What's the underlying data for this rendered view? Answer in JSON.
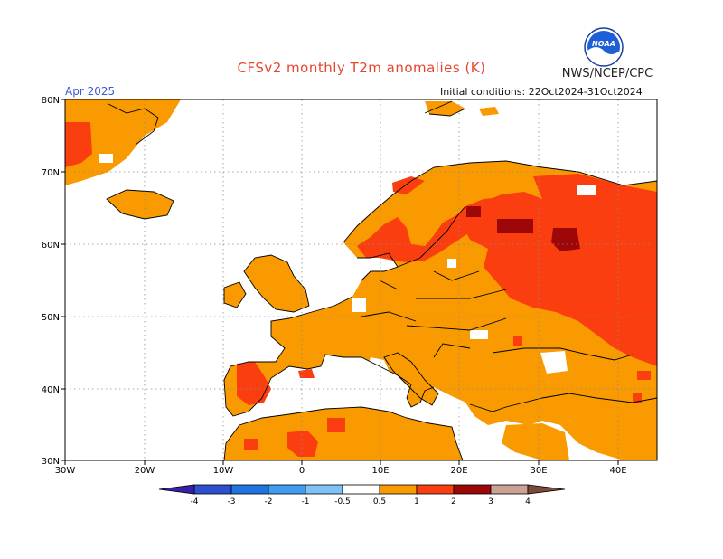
{
  "title": "CFSv2 monthly T2m anomalies (K)",
  "agency": "NWS/NCEP/CPC",
  "logo_text": "NOAA",
  "valid_month": "Apr 2025",
  "initial_conditions": "Initial conditions: 22Oct2024-31Oct2024",
  "map": {
    "lat_labels": [
      "80N",
      "70N",
      "60N",
      "50N",
      "40N",
      "30N"
    ],
    "lon_labels": [
      "30W",
      "20W",
      "10W",
      "0",
      "10E",
      "20E",
      "30E",
      "40E"
    ]
  },
  "colorbar": {
    "labels": [
      "-4",
      "-3",
      "-2",
      "-1",
      "-0.5",
      "0.5",
      "1",
      "2",
      "3",
      "4"
    ],
    "colors": [
      "#3a1fa8",
      "#2d4fd0",
      "#1e74e0",
      "#3f9cf0",
      "#7ec2f7",
      "#ffffff",
      "#f89a00",
      "#fb3e0f",
      "#9e0707",
      "#c9a195",
      "#7a4a3a"
    ]
  }
}
